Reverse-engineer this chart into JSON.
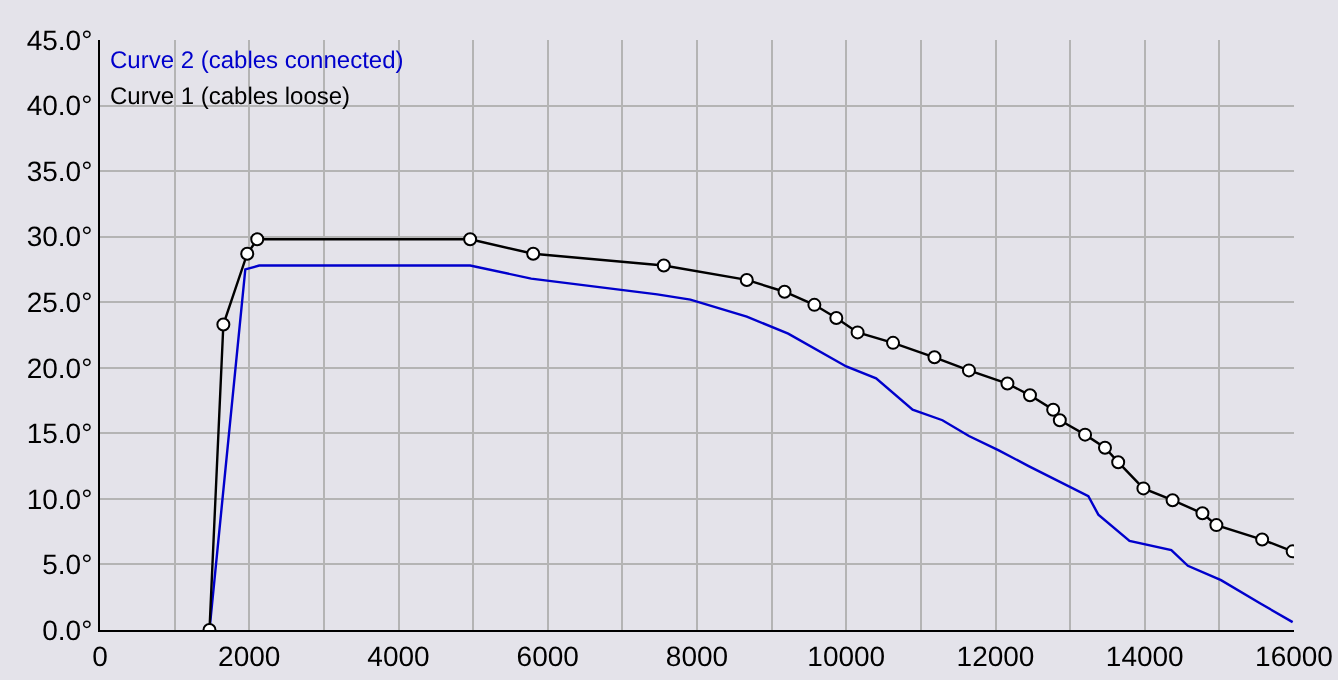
{
  "chart_data": {
    "type": "line",
    "xlim": [
      0,
      16000
    ],
    "ylim": [
      0,
      45
    ],
    "xticks": [
      0,
      {
        "value": 1000,
        "label": null
      },
      2000,
      {
        "value": 3000,
        "label": null
      },
      4000,
      {
        "value": 5000,
        "label": null
      },
      6000,
      {
        "value": 7000,
        "label": null
      },
      8000,
      {
        "value": 9000,
        "label": null
      },
      10000,
      {
        "value": 11000,
        "label": null
      },
      12000,
      {
        "value": 13000,
        "label": null
      },
      14000,
      {
        "value": 15000,
        "label": null
      },
      16000
    ],
    "yticks": [
      {
        "value": 0,
        "label": "0.0°"
      },
      {
        "value": 5,
        "label": "5.0°"
      },
      {
        "value": 10,
        "label": "10.0°"
      },
      {
        "value": 15,
        "label": "15.0°"
      },
      {
        "value": 20,
        "label": "20.0°"
      },
      {
        "value": 25,
        "label": "25.0°"
      },
      {
        "value": 30,
        "label": "30.0°"
      },
      {
        "value": 35,
        "label": "35.0°"
      },
      {
        "value": 40,
        "label": "40.0°"
      },
      {
        "value": 45,
        "label": "45.0°"
      }
    ],
    "grid": true,
    "legend": false,
    "series": [
      {
        "name": "Curve 2 (cables connected)",
        "color": "#0000cc",
        "marker": "none",
        "x": [
          1467,
          1947,
          2133,
          4960,
          5778,
          7467,
          7911,
          8667,
          9222,
          10000,
          10400,
          10889,
          11289,
          11644,
          12044,
          12444,
          13244,
          13378,
          13796,
          14356,
          14578,
          15022,
          15556,
          15982
        ],
        "values": [
          0,
          27.5,
          27.8,
          27.8,
          26.8,
          25.6,
          25.2,
          23.9,
          22.6,
          20.1,
          19.2,
          16.8,
          16.0,
          14.8,
          13.7,
          12.5,
          10.2,
          8.8,
          6.8,
          6.1,
          4.9,
          3.8,
          2.0,
          0.6
        ]
      },
      {
        "name": "Curve 1 (cables loose)",
        "color": "#000000",
        "marker": "circle",
        "x": [
          1467,
          1653,
          1973,
          2107,
          4960,
          5805,
          7555,
          8667,
          9173,
          9573,
          9867,
          10152,
          10627,
          11182,
          11644,
          12160,
          12462,
          12773,
          12862,
          13200,
          13467,
          13644,
          13982,
          14373,
          14773,
          14960,
          15573,
          15982
        ],
        "values": [
          0,
          23.3,
          28.7,
          29.8,
          29.8,
          28.7,
          27.8,
          26.7,
          25.8,
          24.8,
          23.8,
          22.7,
          21.9,
          20.8,
          19.8,
          18.8,
          17.9,
          16.8,
          16.0,
          14.9,
          13.9,
          12.8,
          10.8,
          9.9,
          8.9,
          8.0,
          6.9,
          6.0
        ]
      }
    ]
  }
}
